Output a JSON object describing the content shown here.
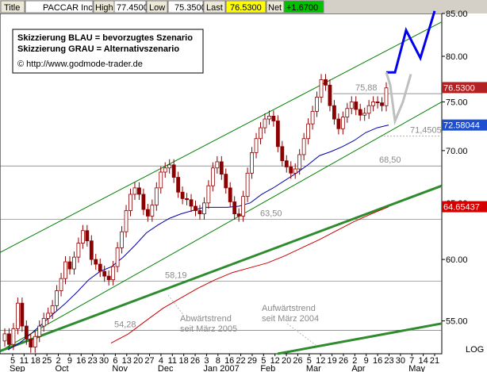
{
  "header": {
    "title_label": "Title",
    "symbol": "PACCAR Inc.",
    "high_label": "High",
    "high_value": "77.4500",
    "low_label": "Low",
    "low_value": "75.3500",
    "last_label": "Last",
    "last_value": "76.5300",
    "net_label": "Net",
    "net_value": "+1.6700"
  },
  "legend": {
    "line1": "Skizzierung BLAU = bevorzugtes Szenario",
    "line2": "Skizzierung GRAU = Alternativszenario",
    "line3": "© http://www.godmode-trader.de"
  },
  "badges": {
    "last_price": "76.5300",
    "ma_value": "72.58044",
    "ma2_value": "64.65437"
  },
  "annotations": {
    "downtrend": "Abwärtstrend\nseit März 2005",
    "uptrend": "Aufwärtstrend\nseit März 2004"
  },
  "log_label": "LOG",
  "colors": {
    "price": "#8b0000",
    "ma_fast": "#0000aa",
    "ma_slow": "#cc0000",
    "channel": "#008000",
    "trend_thick": "#2e8b2e",
    "scenario_blue": "#0000ee",
    "scenario_grey": "#bfbfbf",
    "badge_dark": "#b22222",
    "badge_blue": "#1e4fd0",
    "badge_red": "#d40000",
    "last_bg": "#ffff00",
    "net_bg": "#00c000"
  },
  "chart_data": {
    "type": "candlestick",
    "scale": "log",
    "ylim": [
      52.5,
      85.0
    ],
    "y_ticks": [
      55.0,
      60.0,
      65.0,
      70.0,
      75.0,
      80.0,
      85.0
    ],
    "y_tick_labels": [
      "55.00",
      "60.00",
      "65.00",
      "70.00",
      "75.00",
      "80.00",
      "85.00"
    ],
    "x_day_labels": [
      "5",
      "11",
      "18",
      "25",
      "2",
      "9",
      "16",
      "23",
      "30",
      "6",
      "13",
      "20",
      "27",
      "4",
      "11",
      "18",
      "26",
      "3",
      "8",
      "16",
      "22",
      "29",
      "5",
      "12",
      "20",
      "26",
      "5",
      "12",
      "19",
      "26",
      "2",
      "9",
      "16",
      "23",
      "30",
      "7",
      "14",
      "21"
    ],
    "x_month_labels": [
      "Sep",
      "Oct",
      "Nov",
      "Dec",
      "Jan 2007",
      "Feb",
      "Mar",
      "Apr",
      "May"
    ],
    "horizontal_levels": [
      {
        "value": 54.28,
        "label": "54,28"
      },
      {
        "value": 58.19,
        "label": "58,19"
      },
      {
        "value": 63.5,
        "label": "63,50"
      },
      {
        "value": 68.5,
        "label": "68,50"
      },
      {
        "value": 71.4505,
        "label": "71,4505"
      },
      {
        "value": 75.88,
        "label": "75,88"
      }
    ],
    "close_series": [
      54.0,
      53.2,
      54.4,
      56.4,
      54.6,
      53.6,
      53.0,
      53.8,
      54.6,
      55.2,
      55.6,
      56.2,
      57.4,
      58.4,
      59.8,
      59.2,
      60.2,
      61.4,
      62.5,
      61.6,
      60.0,
      59.6,
      59.0,
      58.6,
      58.3,
      59.4,
      61.0,
      62.4,
      64.3,
      65.8,
      66.4,
      65.8,
      64.4,
      63.8,
      64.8,
      66.4,
      67.9,
      68.3,
      68.6,
      67.4,
      66.0,
      65.4,
      65.3,
      64.7,
      64.3,
      64.0,
      65.0,
      66.6,
      68.3,
      68.9,
      67.7,
      66.4,
      65.1,
      64.0,
      63.8,
      65.6,
      67.8,
      69.8,
      71.2,
      72.3,
      73.2,
      73.5,
      73.0,
      70.4,
      69.0,
      68.4,
      67.8,
      68.2,
      69.6,
      71.2,
      72.7,
      74.0,
      75.5,
      77.4,
      76.8,
      74.6,
      73.2,
      72.2,
      73.4,
      74.3,
      75.0,
      74.2,
      73.6,
      73.8,
      74.6,
      75.0,
      74.9,
      74.6,
      76.5
    ],
    "ma_fast_series": [
      52.8,
      53.3,
      54.0,
      54.8,
      55.6,
      56.4,
      57.3,
      58.3,
      59.0,
      59.4,
      60.2,
      61.2,
      62.3,
      63.0,
      63.6,
      64.0,
      64.3,
      64.6,
      64.6,
      64.6,
      64.7,
      65.0,
      65.8,
      66.4,
      67.1,
      67.8,
      68.6,
      69.5,
      69.9,
      70.4,
      71.0,
      71.8,
      72.3,
      72.58
    ],
    "ma_slow_series": [
      53.3,
      54.0,
      55.0,
      56.0,
      56.8,
      57.6,
      58.3,
      58.9,
      59.3,
      59.7,
      60.3,
      61.0,
      61.7,
      62.5,
      63.3,
      64.0,
      64.65
    ],
    "scenario_blue_series": [
      78.2,
      78.2,
      83.0,
      79.8,
      85.3
    ],
    "scenario_grey_series": [
      78.2,
      76.8,
      73.0,
      75.0,
      78.0
    ]
  }
}
